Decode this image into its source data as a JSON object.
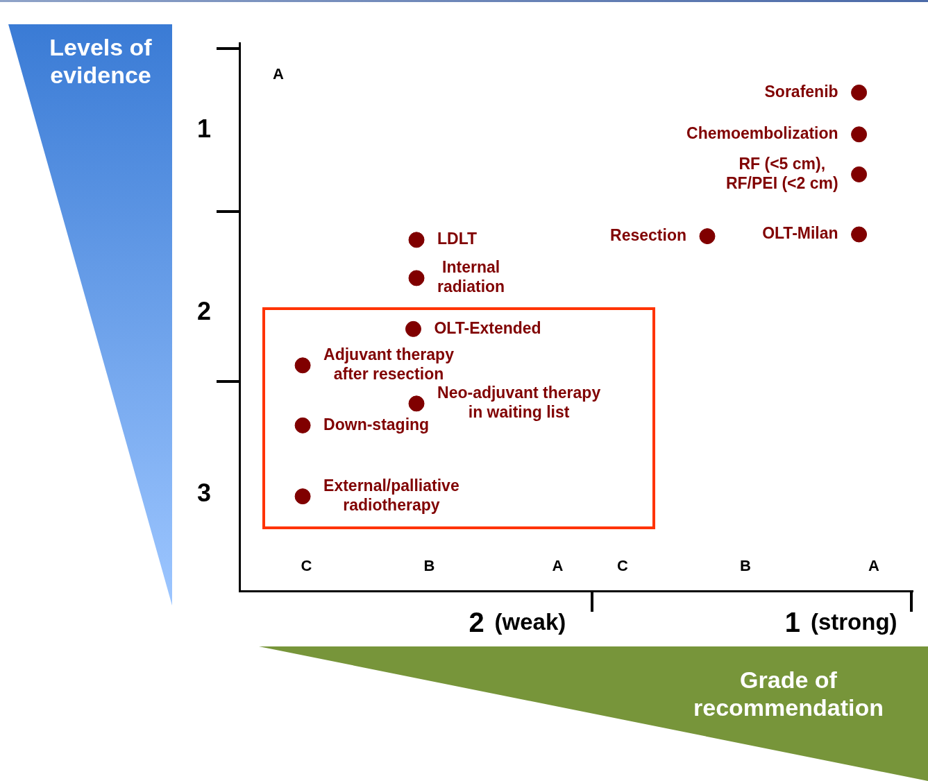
{
  "chart_data": {
    "type": "scatter",
    "xlabel": "Grade of recommendation",
    "ylabel": "Levels of evidence",
    "annotations": [
      "A",
      "(weak)",
      "(strong)",
      "C",
      "B",
      "A",
      "C",
      "B",
      "A"
    ],
    "xlim": [
      2.75,
      0.62
    ],
    "xticks": [
      2,
      1
    ],
    "ylim": [
      3.53,
      0.52
    ],
    "yticks": [
      1,
      2,
      3
    ],
    "marker": "circle",
    "legend": false,
    "series": [
      {
        "name": "Sorafenib",
        "color": "#800000",
        "x": [
          0.79
        ],
        "values": [
          0.79
        ]
      },
      {
        "name": "Chemoembolization",
        "color": "#800000",
        "x": [
          0.79
        ],
        "values": [
          1.02
        ]
      },
      {
        "name": "RF (<5 cm),\nRF/PEI (<2 cm)",
        "color": "#800000",
        "x": [
          0.79
        ],
        "values": [
          1.24
        ]
      },
      {
        "name": "OLT-Milan",
        "color": "#800000",
        "x": [
          0.79
        ],
        "values": [
          1.57
        ]
      },
      {
        "name": "Resection",
        "color": "#800000",
        "x": [
          1.27
        ],
        "values": [
          1.58
        ]
      },
      {
        "name": "LDLT",
        "color": "#800000",
        "x": [
          2.19
        ],
        "values": [
          1.6
        ]
      },
      {
        "name": "Internal\nradiation",
        "color": "#800000",
        "x": [
          2.19
        ],
        "values": [
          1.81
        ]
      },
      {
        "name": "OLT-Extended",
        "color": "#800000",
        "x": [
          2.2
        ],
        "values": [
          2.09
        ]
      },
      {
        "name": "Adjuvant therapy\nafter resection",
        "color": "#800000",
        "x": [
          2.55
        ],
        "values": [
          2.29
        ]
      },
      {
        "name": "Neo-adjuvant therapy\nin waiting list",
        "color": "#800000",
        "x": [
          2.19
        ],
        "values": [
          2.5
        ]
      },
      {
        "name": "Down-staging",
        "color": "#800000",
        "x": [
          2.55
        ],
        "values": [
          2.62
        ]
      },
      {
        "name": "External/palliative\nradiotherapy",
        "color": "#800000",
        "x": [
          2.55
        ],
        "values": [
          3.01
        ]
      }
    ]
  }
}
